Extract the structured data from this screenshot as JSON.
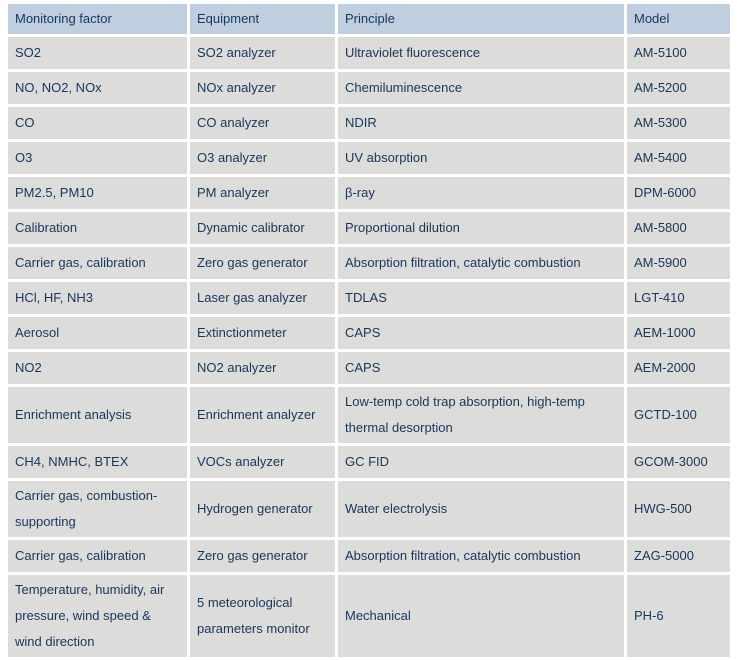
{
  "table": {
    "title_semantic": "monitoring-equipment-specifications",
    "headers": [
      "Monitoring factor",
      "Equipment",
      "Principle",
      "Model"
    ],
    "rows": [
      [
        "SO2",
        "SO2 analyzer",
        "Ultraviolet fluorescence",
        "AM-5100"
      ],
      [
        "NO, NO2, NOx",
        "NOx analyzer",
        "Chemiluminescence",
        "AM-5200"
      ],
      [
        "CO",
        "CO analyzer",
        "NDIR",
        "AM-5300"
      ],
      [
        "O3",
        "O3 analyzer",
        "UV absorption",
        "AM-5400"
      ],
      [
        "PM2.5, PM10",
        "PM analyzer",
        "β-ray",
        "DPM-6000"
      ],
      [
        "Calibration",
        "Dynamic calibrator",
        "Proportional dilution",
        "AM-5800"
      ],
      [
        "Carrier gas, calibration",
        "Zero gas generator",
        "Absorption filtration, catalytic combustion",
        "AM-5900"
      ],
      [
        "HCl, HF, NH3",
        "Laser gas analyzer",
        "TDLAS",
        "LGT-410"
      ],
      [
        "Aerosol",
        "Extinctionmeter",
        "CAPS",
        "AEM-1000"
      ],
      [
        "NO2",
        "NO2 analyzer",
        "CAPS",
        "AEM-2000"
      ],
      [
        "Enrichment analysis",
        "Enrichment analyzer",
        "Low-temp cold trap absorption, high-temp thermal desorption",
        "GCTD-100"
      ],
      [
        "CH4, NMHC, BTEX",
        "VOCs analyzer",
        "GC FID",
        "GCOM-3000"
      ],
      [
        "Carrier gas, combustion-supporting",
        "Hydrogen generator",
        "Water electrolysis",
        "HWG-500"
      ],
      [
        "Carrier gas, calibration",
        "Zero gas generator",
        "Absorption filtration, catalytic combustion",
        "ZAG-5000"
      ],
      [
        "Temperature, humidity, air pressure, wind speed & wind direction",
        "5 meteorological parameters monitor",
        "Mechanical",
        "PH-6"
      ]
    ],
    "colors": {
      "header_bg": "#bfcfdf",
      "row_bg": "#dcdcda",
      "text": "#17365d",
      "grid_gap": "#ffffff"
    }
  }
}
